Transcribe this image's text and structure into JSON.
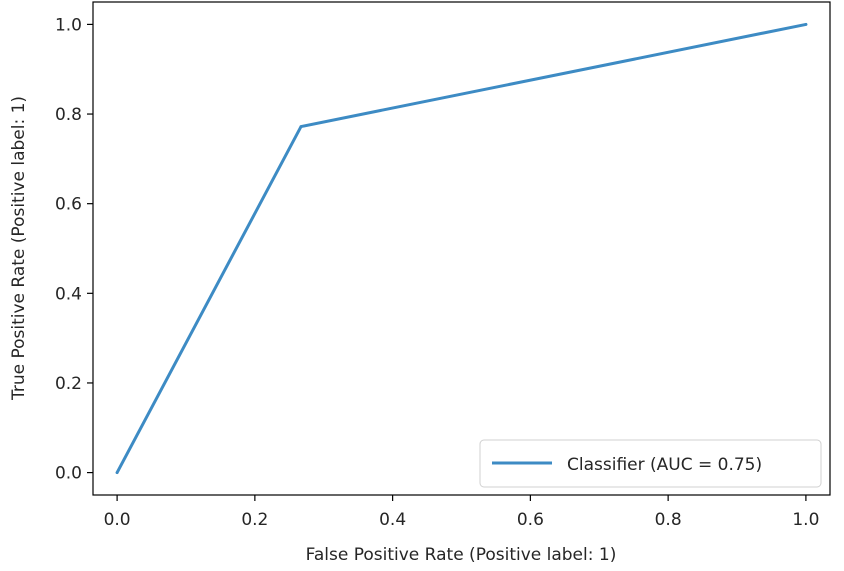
{
  "chart_data": {
    "type": "line",
    "title": "",
    "xlabel": "False Positive Rate (Positive label: 1)",
    "ylabel": "True Positive Rate (Positive label: 1)",
    "xlim": [
      -0.035,
      1.035
    ],
    "ylim": [
      -0.05,
      1.05
    ],
    "x_ticks": [
      0.0,
      0.2,
      0.4,
      0.6,
      0.8,
      1.0
    ],
    "x_tick_labels": [
      "0.0",
      "0.2",
      "0.4",
      "0.6",
      "0.8",
      "1.0"
    ],
    "y_ticks": [
      0.0,
      0.2,
      0.4,
      0.6,
      0.8,
      1.0
    ],
    "y_tick_labels": [
      "0.0",
      "0.2",
      "0.4",
      "0.6",
      "0.8",
      "1.0"
    ],
    "grid": false,
    "legend": "bottom-right",
    "series": [
      {
        "name": "Classifier (AUC = 0.75)",
        "color": "#3d8bc4",
        "x": [
          0.0,
          0.267,
          1.0
        ],
        "y": [
          0.0,
          0.772,
          1.0
        ]
      }
    ]
  }
}
